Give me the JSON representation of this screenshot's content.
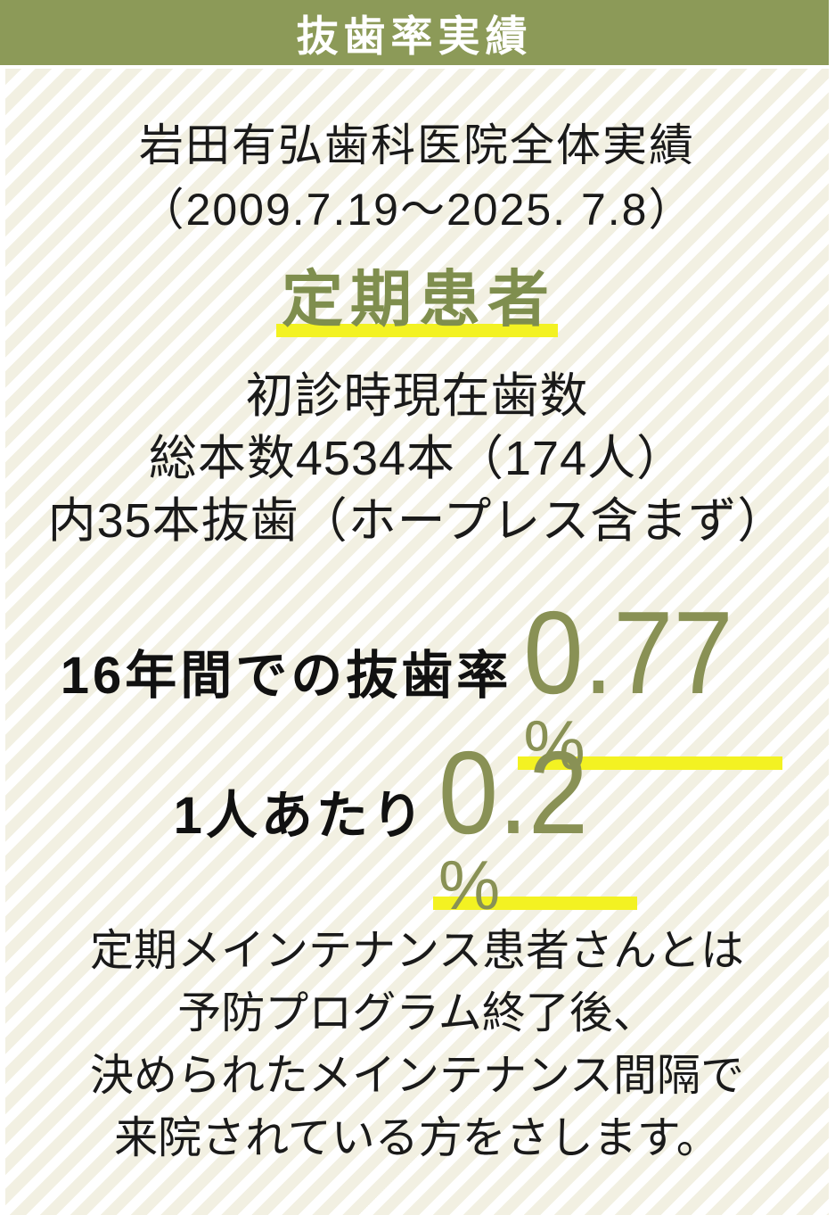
{
  "header": {
    "title": "抜歯率実績"
  },
  "summary": {
    "line1": "岩田有弘歯科医院全体実績",
    "line2": "（2009.7.19～2025. 7.8）"
  },
  "category": {
    "label": "定期患者"
  },
  "details": {
    "lines": [
      "初診時現在歯数",
      "総本数4534本（174人）",
      "内35本抜歯（ホープレス含まず）"
    ]
  },
  "stats": [
    {
      "label": "16年間での抜歯率",
      "value": "0.77",
      "unit": "%"
    },
    {
      "label": "1人あたり",
      "value": "0.2",
      "unit": "%"
    }
  ],
  "note": {
    "lines": [
      "定期メインテナンス患者さんとは",
      "予防プログラム終了後、",
      "決められたメインテナンス間隔で",
      "来院されている方をさします。"
    ]
  },
  "colors": {
    "header_bg": "#8c9a58",
    "accent_text": "#7f8e4e",
    "number_text": "#899155",
    "highlight": "#f3f222",
    "stripe": "#f2f0e2",
    "text": "#1a1a1a"
  }
}
